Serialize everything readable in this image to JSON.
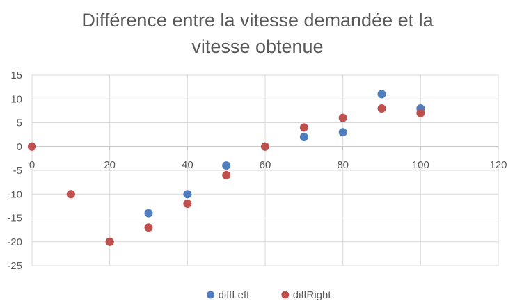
{
  "chart_data": {
    "type": "scatter",
    "title": "Différence entre la vitesse demandée et la\nvitesse obtenue",
    "xlabel": "",
    "ylabel": "",
    "xlim": [
      0,
      120
    ],
    "ylim": [
      -25,
      15
    ],
    "x_ticks": [
      0,
      20,
      40,
      60,
      80,
      100,
      120
    ],
    "y_ticks": [
      15,
      10,
      5,
      0,
      -5,
      -10,
      -15,
      -20,
      -25
    ],
    "grid": true,
    "legend_position": "bottom",
    "series": [
      {
        "name": "diffLeft",
        "color": "#4F7DBE",
        "points": [
          {
            "x": 0,
            "y": 0
          },
          {
            "x": 10,
            "y": -10
          },
          {
            "x": 20,
            "y": -20
          },
          {
            "x": 30,
            "y": -14
          },
          {
            "x": 40,
            "y": -10
          },
          {
            "x": 50,
            "y": -4
          },
          {
            "x": 60,
            "y": 0
          },
          {
            "x": 70,
            "y": 2
          },
          {
            "x": 80,
            "y": 3
          },
          {
            "x": 90,
            "y": 11
          },
          {
            "x": 100,
            "y": 8
          }
        ]
      },
      {
        "name": "diffRight",
        "color": "#C0504D",
        "points": [
          {
            "x": 0,
            "y": 0
          },
          {
            "x": 10,
            "y": -10
          },
          {
            "x": 20,
            "y": -20
          },
          {
            "x": 30,
            "y": -17
          },
          {
            "x": 40,
            "y": -12
          },
          {
            "x": 50,
            "y": -6
          },
          {
            "x": 60,
            "y": 0
          },
          {
            "x": 70,
            "y": 4
          },
          {
            "x": 80,
            "y": 6
          },
          {
            "x": 90,
            "y": 8
          },
          {
            "x": 100,
            "y": 7
          }
        ]
      }
    ]
  }
}
